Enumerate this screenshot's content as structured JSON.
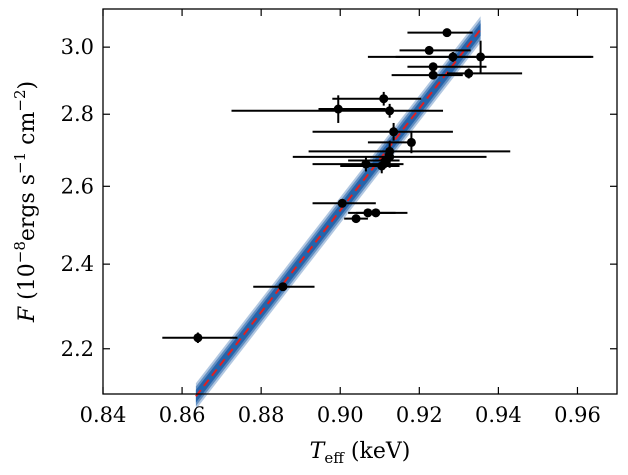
{
  "chart_data": {
    "type": "scatter",
    "title": "",
    "xlabel": "T_eff (keV)",
    "xlabel_main": "T",
    "xlabel_sub": "eff",
    "xlabel_unit": " (keV)",
    "ylabel": "F (10^-8 ergs s^-1 cm^-2)",
    "ylabel_var": "F",
    "ylabel_p1": " (10",
    "ylabel_e1": "−8",
    "ylabel_p2": "ergs s",
    "ylabel_e2": "−1",
    "ylabel_p3": " cm",
    "ylabel_e3": "−2",
    "ylabel_p4": ")",
    "xlim": [
      0.84,
      0.97
    ],
    "ylim_log": [
      2.1,
      3.12
    ],
    "yscale": "log",
    "xticks": [
      0.84,
      0.86,
      0.88,
      0.9,
      0.92,
      0.94,
      0.96
    ],
    "xtick_labels": [
      "0.84",
      "0.86",
      "0.88",
      "0.90",
      "0.92",
      "0.94",
      "0.96"
    ],
    "yticks": [
      2.2,
      2.4,
      2.6,
      2.8,
      3.0
    ],
    "ytick_labels": [
      "2.2",
      "2.4",
      "2.6",
      "2.8",
      "3.0"
    ],
    "points": [
      {
        "x": 0.864,
        "y": 2.225,
        "xerr": [
          0.009,
          0.01
        ],
        "yerr": 0.012
      },
      {
        "x": 0.8855,
        "y": 2.345,
        "xerr": [
          0.0075,
          0.008
        ],
        "yerr": 0.008
      },
      {
        "x": 0.9005,
        "y": 2.555,
        "xerr": [
          0.0075,
          0.0085
        ],
        "yerr": 0.008
      },
      {
        "x": 0.904,
        "y": 2.515,
        "xerr": [
          0.003,
          0.003
        ],
        "yerr": 0.008
      },
      {
        "x": 0.907,
        "y": 2.53,
        "xerr": [
          0.005,
          0.01
        ],
        "yerr": 0.008
      },
      {
        "x": 0.909,
        "y": 2.53,
        "xerr": [
          0.005,
          0.005
        ],
        "yerr": 0.008
      },
      {
        "x": 0.8995,
        "y": 2.815,
        "xerr": [
          0.005,
          0.012
        ],
        "yerr": 0.04
      },
      {
        "x": 0.911,
        "y": 2.845,
        "xerr": [
          0.013,
          0.0095
        ],
        "yerr": 0.02
      },
      {
        "x": 0.9125,
        "y": 2.81,
        "xerr": [
          0.04,
          0.0135
        ],
        "yerr": 0.02
      },
      {
        "x": 0.9135,
        "y": 2.75,
        "xerr": [
          0.0205,
          0.015
        ],
        "yerr": 0.025
      },
      {
        "x": 0.9125,
        "y": 2.695,
        "xerr": [
          0.0205,
          0.0305
        ],
        "yerr": 0.03
      },
      {
        "x": 0.9125,
        "y": 2.68,
        "xerr": [
          0.0245,
          0.0245
        ],
        "yerr": 0.03
      },
      {
        "x": 0.9065,
        "y": 2.66,
        "xerr": [
          0.0135,
          0.0095
        ],
        "yerr": 0.02
      },
      {
        "x": 0.9105,
        "y": 2.655,
        "xerr": [
          0.0105,
          0.0045
        ],
        "yerr": 0.02
      },
      {
        "x": 0.9115,
        "y": 2.67,
        "xerr": [
          0.0095,
          0.0035
        ],
        "yerr": 0.02
      },
      {
        "x": 0.918,
        "y": 2.72,
        "xerr": [
          0.011,
          0.001
        ],
        "yerr": 0.03
      },
      {
        "x": 0.927,
        "y": 3.045,
        "xerr": [
          0.01,
          0.0065
        ],
        "yerr": 0.01
      },
      {
        "x": 0.9225,
        "y": 2.99,
        "xerr": [
          0.0075,
          0.0105
        ],
        "yerr": 0.01
      },
      {
        "x": 0.9285,
        "y": 2.97,
        "xerr": [
          0.0215,
          0.035
        ],
        "yerr": 0.015
      },
      {
        "x": 0.9235,
        "y": 2.94,
        "xerr": [
          0.0065,
          0.0135
        ],
        "yerr": 0.01
      },
      {
        "x": 0.9235,
        "y": 2.915,
        "xerr": [
          0.0105,
          0.0075
        ],
        "yerr": 0.01
      },
      {
        "x": 0.9325,
        "y": 2.92,
        "xerr": [
          0.0055,
          0.0135
        ],
        "yerr": 0.015
      },
      {
        "x": 0.9355,
        "y": 2.97,
        "xerr": [
          0.0215,
          0.0285
        ],
        "yerr": 0.05
      }
    ],
    "fit_line": {
      "x": [
        0.8635,
        0.9355
      ],
      "y": [
        2.095,
        3.055
      ],
      "color": "#e02020",
      "style": "dashed"
    },
    "fit_band": {
      "color": "#1f5fa8",
      "halfwidth_log": 0.01
    },
    "colors": {
      "points": "#000000",
      "band": "#1f5fa8",
      "fit": "#e02020"
    }
  }
}
